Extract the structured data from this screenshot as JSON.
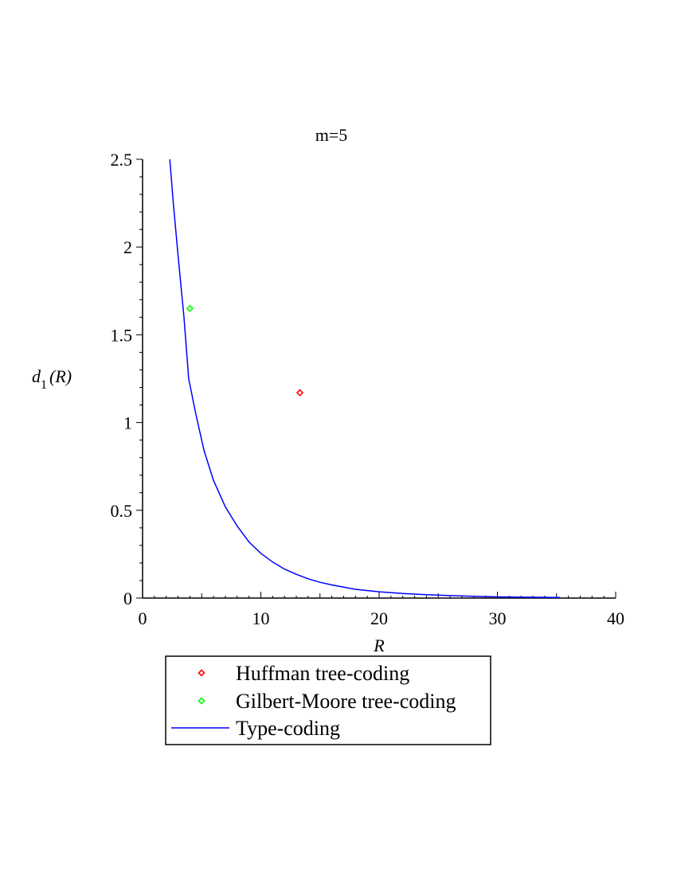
{
  "chart_data": {
    "type": "line",
    "title": "m=5",
    "xlabel": "R",
    "ylabel": {
      "main": "d",
      "subscript": "1",
      "suffix": "(R)"
    },
    "xlim": [
      0,
      40
    ],
    "ylim": [
      0,
      2.5
    ],
    "xticks": [
      0,
      10,
      20,
      30,
      40
    ],
    "yticks": [
      0,
      0.5,
      1,
      1.5,
      2,
      2.5
    ],
    "xtick_labels": [
      "0",
      "10",
      "20",
      "30",
      "40"
    ],
    "ytick_labels": [
      "0",
      "0.5",
      "1",
      "1.5",
      "2",
      "2.5"
    ],
    "grid": false,
    "legend_position": "bottom",
    "series": [
      {
        "name": "Huffman tree-coding",
        "kind": "scatter",
        "marker": "diamond",
        "color": "#ff0000",
        "points": [
          [
            13.3,
            1.17
          ]
        ]
      },
      {
        "name": "Gilbert-Moore tree-coding",
        "kind": "scatter",
        "marker": "diamond",
        "color": "#00ff00",
        "points": [
          [
            4.0,
            1.65
          ]
        ]
      },
      {
        "name": "Type-coding",
        "kind": "line",
        "color": "#0000ff",
        "points": [
          [
            2.3,
            2.5
          ],
          [
            2.6,
            2.25
          ],
          [
            3.0,
            1.95
          ],
          [
            3.5,
            1.6
          ],
          [
            3.9,
            1.25
          ],
          [
            4.5,
            1.05
          ],
          [
            5.2,
            0.84
          ],
          [
            6.0,
            0.67
          ],
          [
            7.0,
            0.52
          ],
          [
            8.0,
            0.41
          ],
          [
            9.0,
            0.32
          ],
          [
            10.0,
            0.255
          ],
          [
            11.0,
            0.205
          ],
          [
            12.0,
            0.165
          ],
          [
            13.0,
            0.135
          ],
          [
            14.0,
            0.11
          ],
          [
            15.0,
            0.09
          ],
          [
            16.0,
            0.075
          ],
          [
            18.0,
            0.05
          ],
          [
            20.0,
            0.036
          ],
          [
            22.0,
            0.026
          ],
          [
            24.0,
            0.019
          ],
          [
            26.0,
            0.014
          ],
          [
            28.0,
            0.01
          ],
          [
            30.0,
            0.007
          ],
          [
            32.0,
            0.005
          ],
          [
            35.3,
            0.003
          ]
        ]
      }
    ]
  }
}
